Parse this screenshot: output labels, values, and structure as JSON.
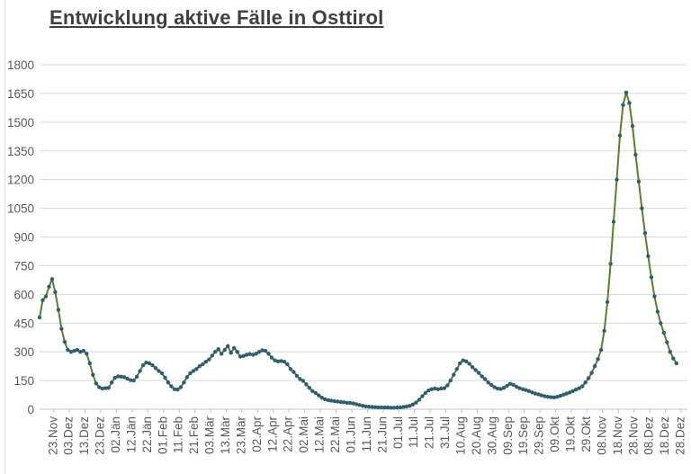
{
  "title": {
    "text": "Entwicklung aktive Fälle in Osttirol"
  },
  "colors": {
    "line": "#5E7D2E",
    "marker": "#2F5F6E",
    "grid": "#D9D9D9",
    "axis": "#C6C6C6",
    "tick": "#BFBFBF",
    "label": "#595959",
    "title": "#404040"
  },
  "chart_data": {
    "type": "line",
    "title": "Entwicklung aktive Fälle in Osttirol",
    "xlabel": "",
    "ylabel": "",
    "legend": "none",
    "grid": "horizontal",
    "ylim": [
      0,
      1800
    ],
    "y_ticks": [
      0,
      150,
      300,
      450,
      600,
      750,
      900,
      1050,
      1200,
      1350,
      1500,
      1650,
      1800
    ],
    "x_tick_labels": [
      "23.Nov",
      "03.Dez",
      "13.Dez",
      "23.Dez",
      "02.Jän",
      "12.Jän",
      "22.Jän",
      "01.Feb",
      "11.Feb",
      "21.Feb",
      "03.Mär",
      "13.Mär",
      "23.Mär",
      "02.Apr",
      "12.Apr",
      "22.Apr",
      "02.Mai",
      "12.Mai",
      "22.Mai",
      "01.Jun",
      "11.Jun",
      "21.Jun",
      "01.Jul",
      "11.Jul",
      "21.Jul",
      "31.Jul",
      "10.Aug",
      "20.Aug",
      "30.Aug",
      "09.Sep",
      "19.Sep",
      "29.Sep",
      "09.Okt",
      "19.Okt",
      "29.Okt",
      "08.Nov",
      "18.Nov",
      "28.Nov",
      "08.Dez",
      "18.Dez",
      "28.Dez"
    ],
    "x_tick_first_day": 9,
    "x_tick_step_days": 10,
    "x_axis_total_days": 409,
    "series": [
      {
        "name": "aktive Fälle",
        "start_day": 0,
        "step_days": 2,
        "values": [
          480,
          570,
          590,
          640,
          680,
          612,
          520,
          420,
          352,
          310,
          300,
          305,
          310,
          300,
          305,
          290,
          240,
          180,
          135,
          115,
          108,
          110,
          112,
          140,
          165,
          172,
          170,
          168,
          160,
          152,
          150,
          170,
          200,
          230,
          244,
          240,
          230,
          215,
          200,
          188,
          165,
          140,
          120,
          105,
          103,
          115,
          140,
          168,
          188,
          200,
          210,
          225,
          235,
          248,
          260,
          280,
          300,
          314,
          290,
          310,
          330,
          295,
          320,
          300,
          275,
          278,
          285,
          288,
          285,
          290,
          300,
          308,
          305,
          290,
          270,
          255,
          250,
          252,
          248,
          235,
          210,
          195,
          175,
          158,
          148,
          130,
          112,
          95,
          85,
          72,
          60,
          52,
          47,
          45,
          42,
          40,
          38,
          36,
          34,
          33,
          30,
          26,
          22,
          18,
          15,
          13,
          12,
          11,
          10,
          10,
          9,
          9,
          8,
          8,
          9,
          10,
          12,
          14,
          18,
          25,
          35,
          50,
          68,
          85,
          98,
          105,
          108,
          105,
          108,
          110,
          125,
          150,
          180,
          210,
          240,
          255,
          250,
          238,
          220,
          205,
          190,
          172,
          158,
          140,
          127,
          115,
          108,
          106,
          112,
          122,
          133,
          128,
          118,
          110,
          105,
          100,
          95,
          88,
          82,
          78,
          73,
          68,
          65,
          63,
          62,
          65,
          70,
          76,
          82,
          88,
          95,
          103,
          110,
          120,
          140,
          162,
          190,
          225,
          262,
          310,
          410,
          560,
          760,
          980,
          1200,
          1430,
          1590,
          1655,
          1600,
          1480,
          1330,
          1190,
          1050,
          920,
          800,
          690,
          590,
          510,
          450,
          400,
          350,
          300,
          265,
          240
        ]
      }
    ]
  }
}
